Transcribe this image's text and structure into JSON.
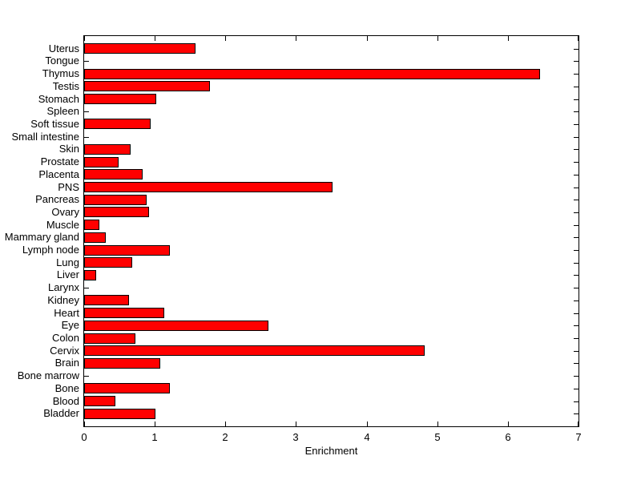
{
  "figure": {
    "background": "#ffffff"
  },
  "chart_data": {
    "type": "bar",
    "orientation": "horizontal",
    "title": "",
    "xlabel": "Enrichment",
    "ylabel": "",
    "xlim": [
      0,
      7
    ],
    "x_ticks": [
      "0",
      "1",
      "2",
      "3",
      "4",
      "5",
      "6",
      "7"
    ],
    "grid": false,
    "legend_position": "none",
    "bar_color": "#ff0000",
    "bar_edge_color": "#000000",
    "axis_color": "#000000",
    "category_order": "top-to-bottom",
    "categories": [
      "Uterus",
      "Tongue",
      "Thymus",
      "Testis",
      "Stomach",
      "Spleen",
      "Soft tissue",
      "Small intestine",
      "Skin",
      "Prostate",
      "Placenta",
      "PNS",
      "Pancreas",
      "Ovary",
      "Muscle",
      "Mammary gland",
      "Lymph node",
      "Lung",
      "Liver",
      "Larynx",
      "Kidney",
      "Heart",
      "Eye",
      "Colon",
      "Cervix",
      "Brain",
      "Bone marrow",
      "Bone",
      "Blood",
      "Bladder"
    ],
    "values": [
      1.58,
      0,
      6.45,
      1.78,
      1.02,
      0,
      0.94,
      0,
      0.66,
      0.49,
      0.83,
      3.52,
      0.89,
      0.92,
      0.22,
      0.31,
      1.21,
      0.68,
      0.17,
      0,
      0.64,
      1.13,
      2.61,
      0.73,
      4.82,
      1.08,
      0,
      1.21,
      0.44,
      1.01
    ]
  }
}
